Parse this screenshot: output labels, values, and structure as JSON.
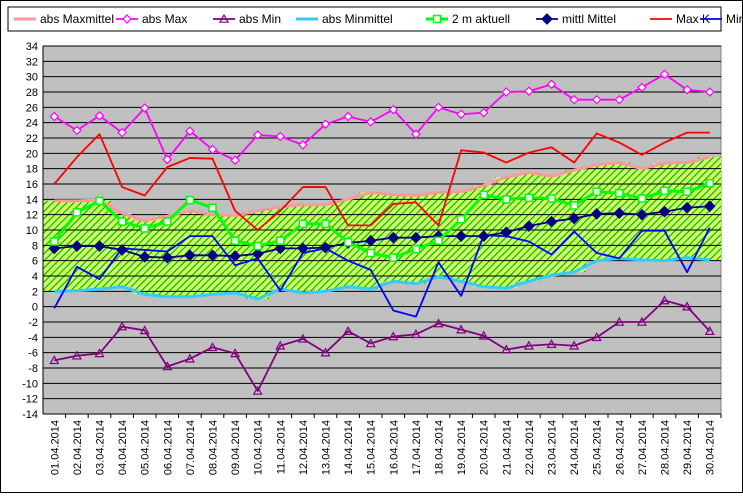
{
  "chart_data": {
    "type": "line",
    "ylim": [
      -14,
      34
    ],
    "ytick_step": 2,
    "grid": true,
    "legend_position": "top",
    "plot_background": "#c0c0c0",
    "categories": [
      "01.04.2014",
      "02.04.2014",
      "03.04.2014",
      "04.04.2014",
      "05.04.2014",
      "06.04.2014",
      "07.04.2014",
      "08.04.2014",
      "09.04.2014",
      "10.04.2014",
      "11.04.2014",
      "12.04.2014",
      "13.04.2014",
      "14.04.2014",
      "15.04.2014",
      "16.04.2014",
      "17.04.2014",
      "18.04.2014",
      "19.04.2014",
      "20.04.2014",
      "21.04.2014",
      "22.04.2014",
      "23.04.2014",
      "24.04.2014",
      "25.04.2014",
      "26.04.2014",
      "27.04.2014",
      "28.04.2014",
      "29.04.2014",
      "30.04.2014"
    ],
    "series": [
      {
        "name": "abs Maxmittel",
        "color": "#ff9999",
        "marker": "none",
        "values": [
          13.8,
          13.8,
          13.9,
          12.2,
          11.2,
          11.8,
          12.5,
          12.0,
          11.9,
          12.5,
          13.0,
          13.3,
          13.3,
          14.0,
          14.9,
          14.6,
          14.5,
          14.9,
          15.0,
          15.8,
          16.9,
          17.5,
          17.0,
          17.8,
          18.5,
          18.8,
          18.0,
          18.7,
          18.8,
          19.5
        ]
      },
      {
        "name": "abs Max",
        "color": "#ff00ff",
        "marker": "diamond-open",
        "values": [
          24.8,
          23.0,
          24.9,
          22.7,
          25.9,
          19.2,
          22.9,
          20.5,
          19.1,
          22.4,
          22.2,
          21.1,
          23.8,
          24.8,
          24.1,
          25.7,
          22.5,
          26.0,
          25.1,
          25.3,
          28.0,
          28.1,
          29.0,
          27.0,
          27.0,
          27.0,
          28.6,
          30.3,
          28.3,
          28.0
        ]
      },
      {
        "name": "abs Min",
        "color": "#800080",
        "marker": "triangle-open",
        "values": [
          -7.0,
          -6.4,
          -6.1,
          -2.6,
          -3.1,
          -7.8,
          -6.8,
          -5.3,
          -6.1,
          -11.0,
          -5.1,
          -4.2,
          -6.0,
          -3.2,
          -4.8,
          -3.9,
          -3.6,
          -2.2,
          -3.0,
          -3.8,
          -5.6,
          -5.1,
          -4.9,
          -5.1,
          -4.0,
          -2.0,
          -2.0,
          0.8,
          0.0,
          -3.2
        ]
      },
      {
        "name": "abs Minmittel",
        "color": "#33ccff",
        "marker": "none",
        "values": [
          2.0,
          2.1,
          2.3,
          2.6,
          1.6,
          1.3,
          1.3,
          1.6,
          1.8,
          1.0,
          2.3,
          1.8,
          2.0,
          2.6,
          2.3,
          3.3,
          3.0,
          3.9,
          3.3,
          2.6,
          2.4,
          3.3,
          4.1,
          4.5,
          6.0,
          6.3,
          6.1,
          6.0,
          6.4,
          6.1
        ]
      },
      {
        "name": "2 m aktuell",
        "color": "#00ff00",
        "marker": "square-open",
        "values": [
          8.5,
          12.3,
          13.8,
          11.1,
          10.2,
          11.1,
          13.9,
          12.9,
          8.6,
          7.9,
          8.6,
          10.8,
          10.8,
          8.4,
          7.0,
          6.4,
          7.5,
          8.6,
          11.4,
          14.6,
          14.0,
          14.2,
          14.1,
          13.2,
          15.0,
          14.8,
          14.1,
          15.1,
          15.0,
          16.1
        ]
      },
      {
        "name": "mittl Mittel",
        "color": "#000080",
        "marker": "diamond-filled",
        "values": [
          7.6,
          7.9,
          7.9,
          7.4,
          6.5,
          6.4,
          6.7,
          6.7,
          6.6,
          6.9,
          7.6,
          7.6,
          7.7,
          8.3,
          8.6,
          9.0,
          9.0,
          9.2,
          9.2,
          9.2,
          9.7,
          10.5,
          11.1,
          11.5,
          12.1,
          12.2,
          12.0,
          12.4,
          12.9,
          13.1
        ]
      },
      {
        "name": "Max K",
        "color": "#ff0000",
        "marker": "none",
        "values": [
          16.0,
          19.5,
          22.5,
          15.6,
          14.5,
          18.2,
          19.4,
          19.3,
          12.5,
          10.0,
          12.5,
          15.6,
          15.6,
          10.6,
          10.6,
          13.4,
          13.6,
          10.6,
          20.4,
          20.1,
          18.8,
          20.1,
          20.8,
          18.8,
          22.6,
          21.4,
          19.8,
          21.4,
          22.7,
          22.7
        ]
      },
      {
        "name": "Min K",
        "color": "#0000ff",
        "marker": "none",
        "values": [
          -0.2,
          5.2,
          3.6,
          7.6,
          7.4,
          7.2,
          9.2,
          9.2,
          5.4,
          6.3,
          2.1,
          7.0,
          7.6,
          6.0,
          4.8,
          -0.5,
          -1.3,
          5.8,
          1.4,
          9.3,
          9.2,
          8.5,
          6.8,
          9.8,
          7.0,
          6.3,
          9.9,
          9.9,
          4.5,
          10.3
        ]
      }
    ]
  }
}
